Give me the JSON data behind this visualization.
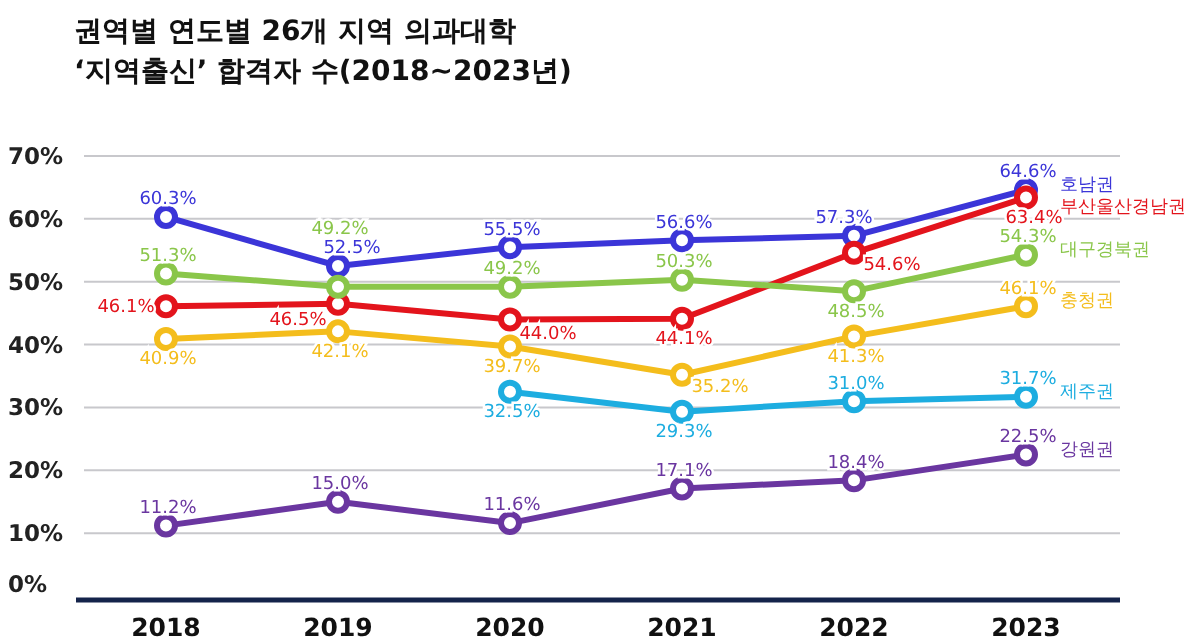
{
  "chart_data": {
    "type": "line",
    "title": "권역별 연도별 26개 지역 의과대학\n‘지역출신’ 합격자 수(2018~2023년)",
    "categories": [
      "2018",
      "2019",
      "2020",
      "2021",
      "2022",
      "2023"
    ],
    "ylim": [
      0,
      70
    ],
    "yticks": [
      {
        "value": 0,
        "label": "0%"
      },
      {
        "value": 10,
        "label": "10%"
      },
      {
        "value": 20,
        "label": "20%"
      },
      {
        "value": 30,
        "label": "30%"
      },
      {
        "value": 40,
        "label": "40%"
      },
      {
        "value": 50,
        "label": "50%"
      },
      {
        "value": 60,
        "label": "60%"
      },
      {
        "value": 70,
        "label": "70%"
      }
    ],
    "grid": "y",
    "marker": "circle",
    "legend": false,
    "series": [
      {
        "name": "호남권",
        "color": "#3b35d8",
        "values": [
          60.3,
          52.5,
          55.5,
          56.6,
          57.3,
          64.6
        ],
        "value_labels": [
          "60.3%",
          "52.5%",
          "55.5%",
          "56.6%",
          "57.3%",
          "64.6%"
        ]
      },
      {
        "name": "부산울산경남권",
        "color": "#e3141c",
        "values": [
          46.1,
          46.5,
          44.0,
          44.1,
          54.6,
          63.4
        ],
        "value_labels": [
          "46.1%",
          "46.5%",
          "44.0%",
          "44.1%",
          "54.6%",
          "63.4%"
        ]
      },
      {
        "name": "대구경북권",
        "color": "#8ac64a",
        "values": [
          51.3,
          49.2,
          49.2,
          50.3,
          48.5,
          54.3
        ],
        "value_labels": [
          "51.3%",
          "49.2%",
          "49.2%",
          "50.3%",
          "48.5%",
          "54.3%"
        ]
      },
      {
        "name": "충청권",
        "color": "#f4bd1c",
        "values": [
          40.9,
          42.1,
          39.7,
          35.2,
          41.3,
          46.1
        ],
        "value_labels": [
          "40.9%",
          "42.1%",
          "39.7%",
          "35.2%",
          "41.3%",
          "46.1%"
        ]
      },
      {
        "name": "제주권",
        "color": "#1dade0",
        "values": [
          null,
          null,
          32.5,
          29.3,
          31.0,
          31.7
        ],
        "value_labels": [
          null,
          null,
          "32.5%",
          "29.3%",
          "31.0%",
          "31.7%"
        ]
      },
      {
        "name": "강원권",
        "color": "#6a36a0",
        "values": [
          11.2,
          15.0,
          11.6,
          17.1,
          18.4,
          22.5
        ],
        "value_labels": [
          "11.2%",
          "15.0%",
          "11.6%",
          "17.1%",
          "18.4%",
          "22.5%"
        ]
      }
    ]
  }
}
